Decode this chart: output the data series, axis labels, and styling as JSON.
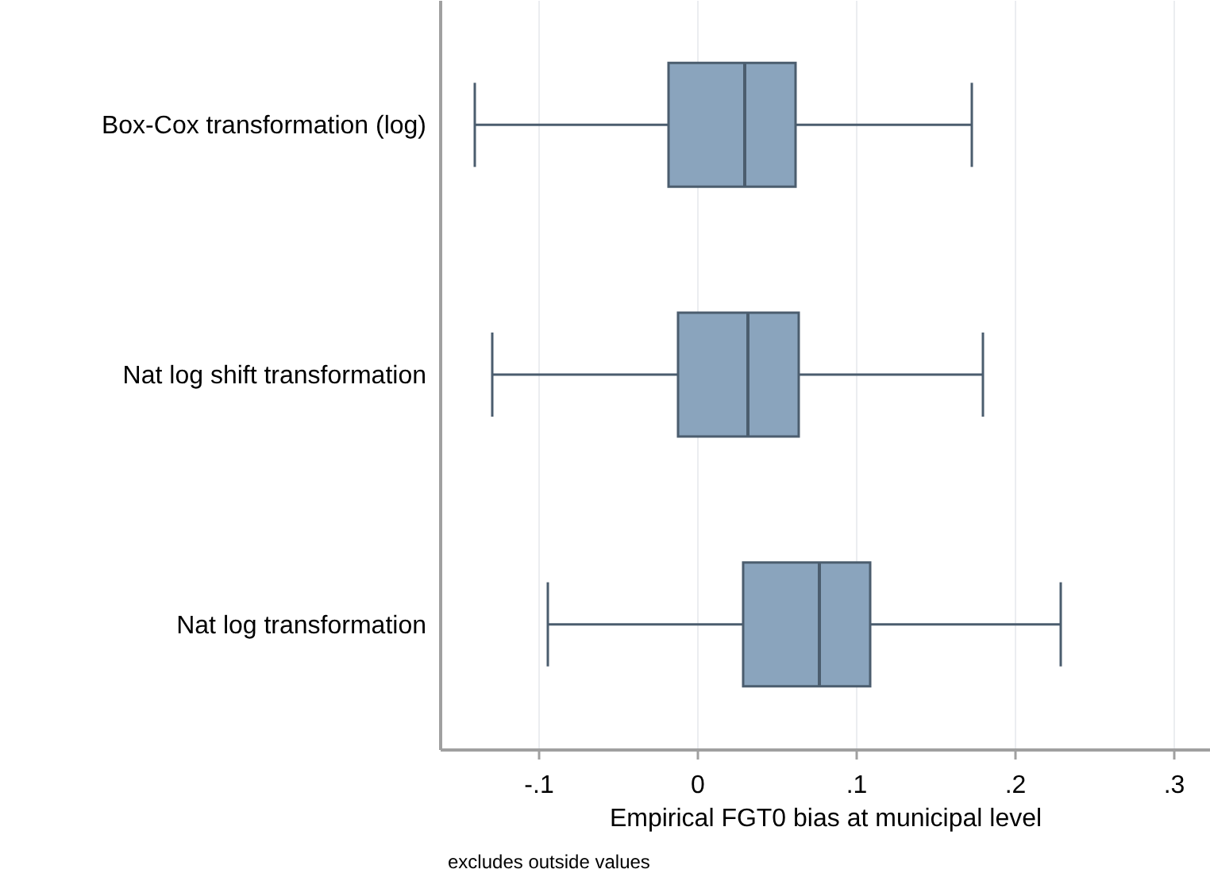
{
  "chart_data": {
    "type": "box",
    "orientation": "horizontal",
    "categories": [
      "Box-Cox transformation (log)",
      "Nat log shift transformation",
      "Nat log transformation"
    ],
    "series": [
      {
        "color": "#8aa4bd",
        "boxes": [
          {
            "low": -0.14,
            "q1": -0.018,
            "median": 0.03,
            "q3": 0.062,
            "high": 0.173
          },
          {
            "low": -0.129,
            "q1": -0.012,
            "median": 0.032,
            "q3": 0.064,
            "high": 0.18
          },
          {
            "low": -0.094,
            "q1": 0.029,
            "median": 0.077,
            "q3": 0.109,
            "high": 0.229
          }
        ]
      }
    ],
    "xlabel": "Empirical FGT0 bias at municipal level",
    "annotations": [
      "excludes outside values"
    ],
    "xlim": [
      -0.162,
      0.323
    ],
    "xticks": [
      {
        "value": -0.1,
        "label": "-.1"
      },
      0,
      {
        "value": 0.1,
        "label": ".1"
      },
      {
        "value": 0.2,
        "label": ".2"
      },
      {
        "value": 0.3,
        "label": ".3"
      }
    ],
    "grid": "x"
  }
}
